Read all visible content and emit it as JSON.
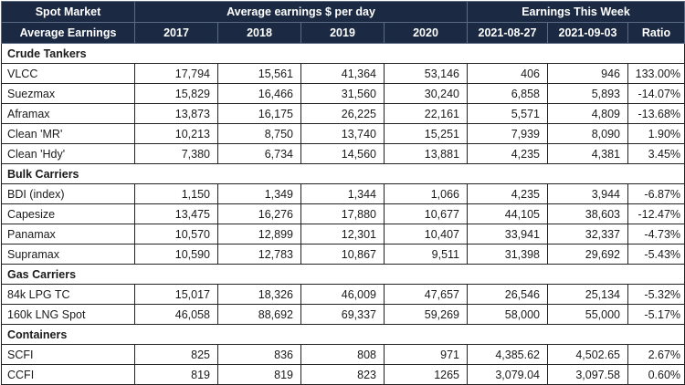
{
  "header": {
    "row1": {
      "spot_market": "Spot Market",
      "avg_earnings_title": "Average earnings $ per day",
      "earnings_week_title": "Earnings This Week"
    },
    "row2": {
      "average_earnings": "Average Earnings",
      "y2017": "2017",
      "y2018": "2018",
      "y2019": "2019",
      "y2020": "2020",
      "w1": "2021-08-27",
      "w2": "2021-09-03",
      "ratio": "Ratio"
    }
  },
  "sections": [
    {
      "title": "Crude Tankers",
      "rows": [
        {
          "name": "VLCC",
          "y2017": "17,794",
          "y2018": "15,561",
          "y2019": "41,364",
          "y2020": "53,146",
          "w1": "406",
          "w2": "946",
          "ratio": "133.00%"
        },
        {
          "name": "Suezmax",
          "y2017": "15,829",
          "y2018": "16,466",
          "y2019": "31,560",
          "y2020": "30,240",
          "w1": "6,858",
          "w2": "5,893",
          "ratio": "-14.07%"
        },
        {
          "name": "Aframax",
          "y2017": "13,873",
          "y2018": "16,175",
          "y2019": "26,225",
          "y2020": "22,161",
          "w1": "5,571",
          "w2": "4,809",
          "ratio": "-13.68%"
        },
        {
          "name": "Clean 'MR'",
          "y2017": "10,213",
          "y2018": "8,750",
          "y2019": "13,740",
          "y2020": "15,251",
          "w1": "7,939",
          "w2": "8,090",
          "ratio": "1.90%"
        },
        {
          "name": "Clean 'Hdy'",
          "y2017": "7,380",
          "y2018": "6,734",
          "y2019": "14,560",
          "y2020": "13,881",
          "w1": "4,235",
          "w2": "4,381",
          "ratio": "3.45%"
        }
      ]
    },
    {
      "title": "Bulk Carriers",
      "rows": [
        {
          "name": "BDI (index)",
          "y2017": "1,150",
          "y2018": "1,349",
          "y2019": "1,344",
          "y2020": "1,066",
          "w1": "4,235",
          "w2": "3,944",
          "ratio": "-6.87%"
        },
        {
          "name": "Capesize",
          "y2017": "13,475",
          "y2018": "16,276",
          "y2019": "17,880",
          "y2020": "10,677",
          "w1": "44,105",
          "w2": "38,603",
          "ratio": "-12.47%"
        },
        {
          "name": "Panamax",
          "y2017": "10,570",
          "y2018": "12,899",
          "y2019": "12,301",
          "y2020": "10,407",
          "w1": "33,941",
          "w2": "32,337",
          "ratio": "-4.73%"
        },
        {
          "name": "Supramax",
          "y2017": "10,590",
          "y2018": "12,783",
          "y2019": "10,867",
          "y2020": "9,511",
          "w1": "31,398",
          "w2": "29,692",
          "ratio": "-5.43%"
        }
      ]
    },
    {
      "title": "Gas Carriers",
      "rows": [
        {
          "name": "84k LPG TC",
          "y2017": "15,017",
          "y2018": "18,326",
          "y2019": "46,009",
          "y2020": "47,657",
          "w1": "26,546",
          "w2": "25,134",
          "ratio": "-5.32%"
        },
        {
          "name": "160k LNG Spot",
          "y2017": "46,058",
          "y2018": "88,692",
          "y2019": "69,337",
          "y2020": "59,269",
          "w1": "58,000",
          "w2": "55,000",
          "ratio": "-5.17%"
        }
      ]
    },
    {
      "title": "Containers",
      "rows": [
        {
          "name": "SCFI",
          "y2017": "825",
          "y2018": "836",
          "y2019": "808",
          "y2020": "971",
          "w1": "4,385.62",
          "w2": "4,502.65",
          "ratio": "2.67%"
        },
        {
          "name": "CCFI",
          "y2017": "819",
          "y2018": "819",
          "y2019": "823",
          "y2020": "1265",
          "w1": "3,079.04",
          "w2": "3,097.58",
          "ratio": "0.60%"
        }
      ]
    }
  ]
}
